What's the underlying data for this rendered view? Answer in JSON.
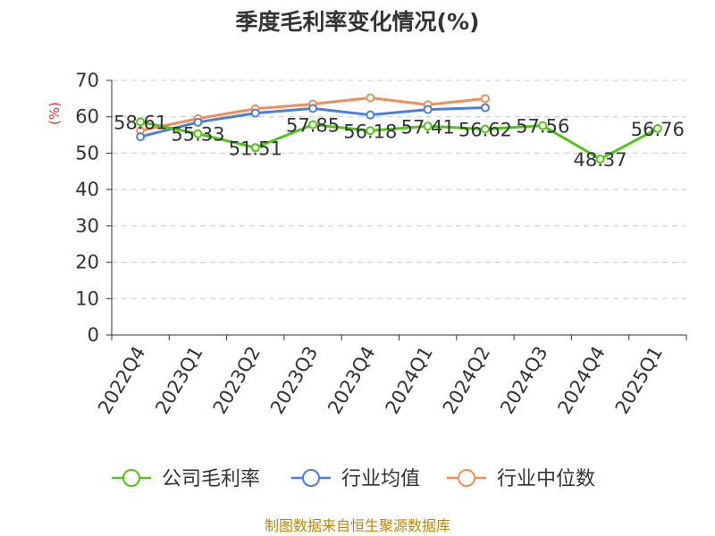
{
  "chart_data": {
    "type": "line",
    "title": "季度毛利率变化情况(%)",
    "ylabel": "(%)",
    "ylim": [
      0,
      70
    ],
    "yticks": [
      0,
      10,
      20,
      30,
      40,
      50,
      60,
      70
    ],
    "categories": [
      "2022Q4",
      "2023Q1",
      "2023Q2",
      "2023Q3",
      "2023Q4",
      "2024Q1",
      "2024Q2",
      "2024Q3",
      "2024Q4",
      "2025Q1"
    ],
    "grid": true,
    "legend_position": "bottom",
    "series": [
      {
        "name": "公司毛利率",
        "color": "#52c41a",
        "values": [
          58.61,
          55.33,
          51.51,
          57.85,
          56.18,
          57.41,
          56.62,
          57.56,
          48.37,
          56.76
        ],
        "labels": [
          "58.61",
          "55.33",
          "51.51",
          "57.85",
          "56.18",
          "57.41",
          "56.62",
          "57.56",
          "48.37",
          "56.76"
        ]
      },
      {
        "name": "行业均值",
        "color": "#4a7fdc",
        "values": [
          54.5,
          58.5,
          61.0,
          62.3,
          60.5,
          62.0,
          62.5,
          null,
          null,
          null
        ]
      },
      {
        "name": "行业中位数",
        "color": "#f28c5a",
        "values": [
          56.2,
          59.5,
          62.2,
          63.5,
          65.2,
          63.3,
          65.0,
          null,
          null,
          null
        ]
      }
    ]
  },
  "footer": {
    "source": "制图数据来自恒生聚源数据库"
  }
}
